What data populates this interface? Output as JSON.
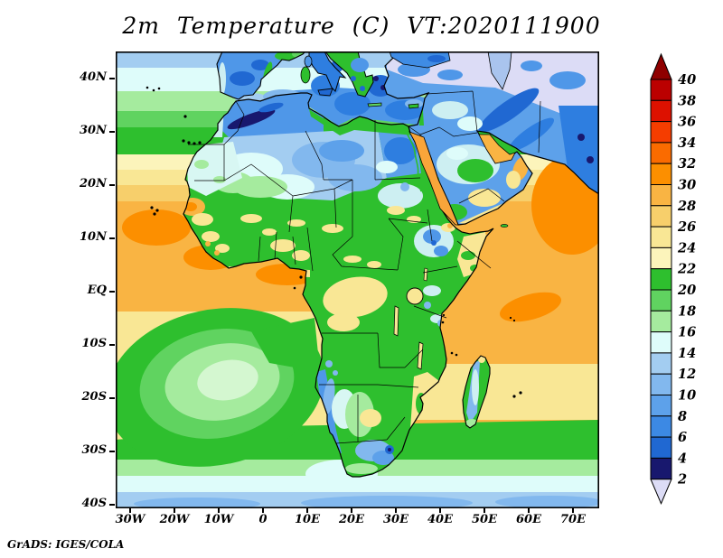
{
  "header": {
    "title": "2m Temperature (C) VT:2020111900"
  },
  "footer": {
    "attribution": "GrADS: IGES/COLA"
  },
  "axes": {
    "lat_ticks": [
      "40N",
      "30N",
      "20N",
      "10N",
      "EQ",
      "10S",
      "20S",
      "30S",
      "40S"
    ],
    "lon_ticks": [
      "30W",
      "20W",
      "10W",
      "0",
      "10E",
      "20E",
      "30E",
      "40E",
      "50E",
      "60E",
      "70E"
    ]
  },
  "colorbar": {
    "unit": "C",
    "tick_labels": [
      "40",
      "38",
      "36",
      "34",
      "32",
      "30",
      "28",
      "26",
      "24",
      "22",
      "20",
      "18",
      "16",
      "14",
      "12",
      "10",
      "8",
      "6",
      "4",
      "2"
    ],
    "segment_colors": [
      "#bb0000",
      "#dd1100",
      "#f53d00",
      "#fa6b00",
      "#fc8f00",
      "#f9b443",
      "#f7cf6b",
      "#f9e795",
      "#fcf4bb",
      "#2ebf2e",
      "#60d360",
      "#a5eb9e",
      "#defcfa",
      "#a3cdf1",
      "#82b8ee",
      "#5da1ea",
      "#3c89e4",
      "#2068d2",
      "#18186e"
    ],
    "arrow_top_color": "#8f0000",
    "arrow_bottom_color": "#dcdcf6"
  }
}
